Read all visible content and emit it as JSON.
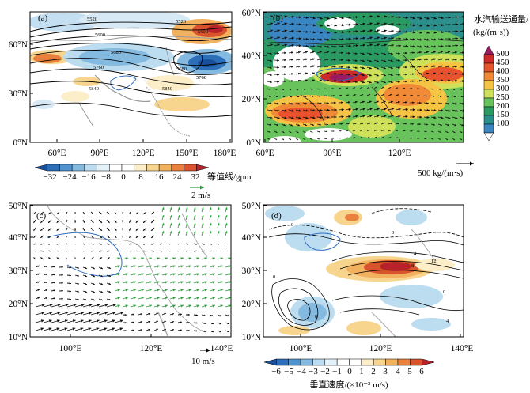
{
  "panels": {
    "a": {
      "letter": "(a)",
      "x_ticks": [
        "60°E",
        "90°E",
        "120°E",
        "150°E",
        "180°E"
      ],
      "y_ticks": [
        "0°N",
        "30°N",
        "60°N"
      ],
      "contour_labels": [
        "5520",
        "5520",
        "5600",
        "5600",
        "5680",
        "5680",
        "5760",
        "5760",
        "5840",
        "5840"
      ],
      "colorbar": {
        "ticks": [
          "−32",
          "−24",
          "−16",
          "−8",
          "0",
          "8",
          "16",
          "24",
          "32"
        ],
        "label": "等值线/gpm",
        "colors": [
          "#1a4f9c",
          "#2c6fb8",
          "#4f93cf",
          "#84b9e0",
          "#bcdcef",
          "#e3f1f9",
          "#ffffff",
          "#ffffff",
          "#fbeec9",
          "#f8d58e",
          "#f2b15f",
          "#e9803e",
          "#d9532c",
          "#b8232a"
        ]
      }
    },
    "b": {
      "letter": "(b)",
      "x_ticks": [
        "60°E",
        "90°E",
        "120°E"
      ],
      "y_ticks": [
        "0°N",
        "20°N",
        "40°N",
        "60°N"
      ],
      "colorbar": {
        "title_line1": "水汽输送通量/",
        "title_line2": "(kg/(m·s))",
        "ticks": [
          "500",
          "450",
          "400",
          "350",
          "300",
          "250",
          "200",
          "150",
          "100"
        ],
        "colors": [
          "#9a1c5e",
          "#cf2a2a",
          "#e6532c",
          "#f08a36",
          "#f6c445",
          "#cfe05a",
          "#69c35c",
          "#2a9a63",
          "#2d8f8b",
          "#3a86c2"
        ]
      },
      "reference_vector": "500 kg/(m·s)"
    },
    "c": {
      "letter": "(c)",
      "x_ticks": [
        "100°E",
        "120°E",
        "140°E"
      ],
      "y_ticks": [
        "10°N",
        "20°N",
        "30°N",
        "40°N",
        "50°N"
      ],
      "ref_vector_green": "2 m/s",
      "ref_vector_black": "10 m/s",
      "colors": {
        "black_vector": "#111111",
        "green_vector": "#27a33a"
      }
    },
    "d": {
      "letter": "(d)",
      "x_ticks": [
        "100°E",
        "120°E",
        "140°E"
      ],
      "y_ticks": [
        "10°N",
        "20°N",
        "30°N",
        "40°N",
        "50°N"
      ],
      "contour_labels": [
        "0",
        "0",
        "4",
        "8",
        "12",
        "0",
        "0",
        "4",
        "0"
      ],
      "colorbar": {
        "ticks": [
          "−6",
          "−5",
          "−4",
          "−3",
          "−2",
          "−1",
          "0",
          "1",
          "2",
          "3",
          "4",
          "5",
          "6"
        ],
        "label": "垂直速度/(×10⁻³ m/s)",
        "colors": [
          "#1a4f9c",
          "#2c6fb8",
          "#4f93cf",
          "#84b9e0",
          "#bcdcef",
          "#e3f1f9",
          "#ffffff",
          "#ffffff",
          "#fbeec9",
          "#f8d58e",
          "#f2b15f",
          "#e9803e",
          "#d9532c",
          "#b8232a"
        ]
      }
    }
  },
  "chart_data": [
    {
      "type": "heatmap",
      "panel": "a",
      "xlim": [
        "40°E",
        "180°E"
      ],
      "ylim": [
        "0°N",
        "78°N"
      ],
      "description_values": "geopotential height anomaly shading with 500 hPa height contours 5520–5840 gpm"
    },
    {
      "type": "heatmap",
      "panel": "b",
      "xlim": [
        "60°E",
        "145°E"
      ],
      "ylim": [
        "0°N",
        "60°N"
      ],
      "values_range": [
        100,
        500
      ],
      "units": "kg/(m·s)"
    },
    {
      "type": "scatter",
      "panel": "c",
      "xlim": [
        "90°E",
        "140°E"
      ],
      "ylim": [
        "10°N",
        "50°N"
      ]
    },
    {
      "type": "heatmap",
      "panel": "d",
      "xlim": [
        "90°E",
        "140°E"
      ],
      "ylim": [
        "10°N",
        "50°N"
      ],
      "values_range": [
        -6,
        6
      ]
    }
  ]
}
